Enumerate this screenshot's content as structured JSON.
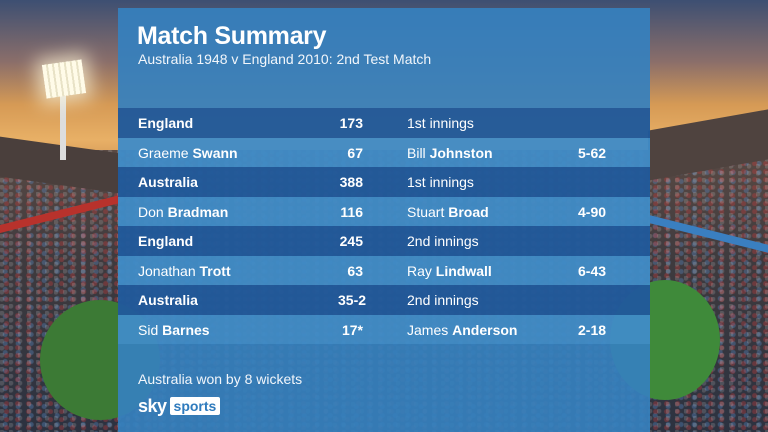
{
  "header": {
    "title": "Match Summary",
    "subtitle": "Australia 1948 v England 2010:  2nd Test Match"
  },
  "rows": [
    {
      "type": "team",
      "team": "England",
      "score": "173",
      "innings": "1st innings"
    },
    {
      "type": "player",
      "batsman_first": "Graeme",
      "batsman_last": "Swann",
      "runs": "67",
      "bowler_first": "Bill",
      "bowler_last": "Johnston",
      "figures": "5-62"
    },
    {
      "type": "team",
      "team": "Australia",
      "score": "388",
      "innings": "1st innings"
    },
    {
      "type": "player",
      "batsman_first": "Don",
      "batsman_last": "Bradman",
      "runs": "116",
      "bowler_first": "Stuart",
      "bowler_last": "Broad",
      "figures": "4-90"
    },
    {
      "type": "team",
      "team": "England",
      "score": "245",
      "innings": "2nd innings"
    },
    {
      "type": "player",
      "batsman_first": "Jonathan",
      "batsman_last": "Trott",
      "runs": "63",
      "bowler_first": "Ray",
      "bowler_last": "Lindwall",
      "figures": "6-43"
    },
    {
      "type": "team",
      "team": "Australia",
      "score": "35-2",
      "innings": "2nd innings"
    },
    {
      "type": "player",
      "batsman_first": "Sid",
      "batsman_last": "Barnes",
      "runs": "17*",
      "bowler_first": "James",
      "bowler_last": "Anderson",
      "figures": "2-18"
    }
  ],
  "footer": {
    "result": "Australia won by 8 wickets",
    "logo_sky": "sky",
    "logo_sports": "sports"
  },
  "colors": {
    "panel": "#3680bd",
    "team_row": "#1e4f8f",
    "text": "#ffffff"
  }
}
